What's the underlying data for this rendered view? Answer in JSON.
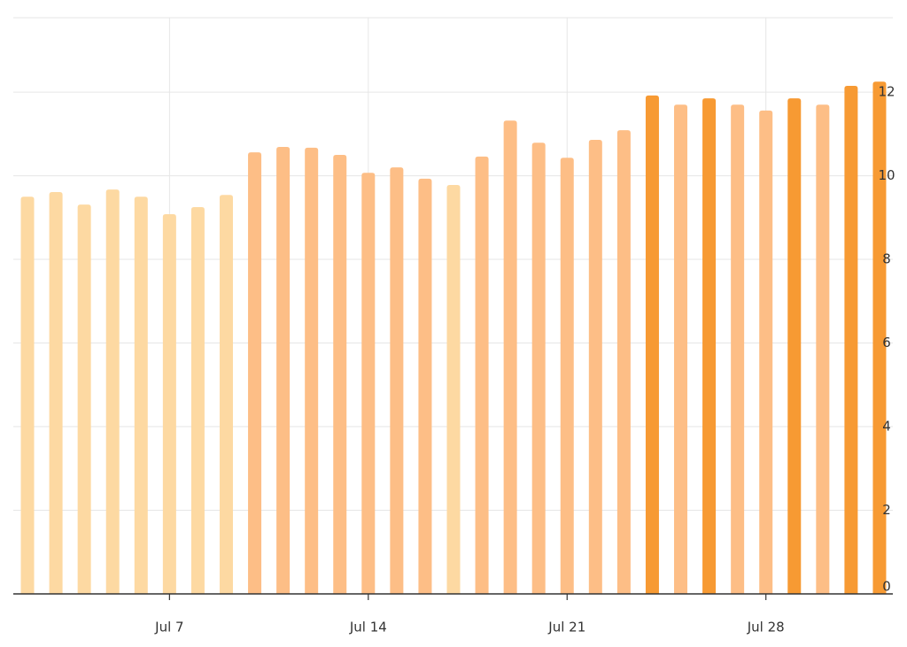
{
  "chart_data": {
    "type": "bar",
    "categories": [
      null,
      null,
      null,
      null,
      null,
      "Jul 7",
      null,
      null,
      null,
      null,
      null,
      null,
      "Jul 14",
      null,
      null,
      null,
      null,
      null,
      null,
      "Jul 21",
      null,
      null,
      null,
      null,
      null,
      null,
      "Jul 28",
      null,
      null,
      null,
      null
    ],
    "values": [
      9.5,
      9.61,
      9.31,
      9.67,
      9.5,
      9.08,
      9.25,
      9.54,
      10.56,
      10.69,
      10.67,
      10.5,
      10.07,
      10.2,
      9.93,
      9.78,
      10.46,
      11.32,
      10.79,
      10.43,
      10.86,
      11.09,
      11.92,
      11.7,
      11.85,
      11.7,
      11.56,
      11.85,
      11.7,
      12.15,
      12.25
    ],
    "colors": [
      "#fdd9a2",
      "#fdd9a2",
      "#fdd9a2",
      "#fdd9a2",
      "#fdd9a2",
      "#fdd9a2",
      "#fdd9a2",
      "#fdd9a2",
      "#fdbe86",
      "#fdbe86",
      "#fdbe86",
      "#fdbe86",
      "#fdbe86",
      "#fdbe86",
      "#fdbe86",
      "#fdd9a2",
      "#fdbe86",
      "#fdbe86",
      "#fdbe86",
      "#fdbe86",
      "#fdbe86",
      "#fdbe86",
      "#f79a33",
      "#fdbe86",
      "#f79a33",
      "#fdbe86",
      "#fdbe86",
      "#f79a33",
      "#fdbe86",
      "#f79a33",
      "#f79a33"
    ],
    "ylim": [
      0,
      13.78
    ],
    "yticks": [
      0,
      2,
      4,
      6,
      8,
      10,
      12
    ],
    "grid": true,
    "y_axis_side": "right"
  }
}
